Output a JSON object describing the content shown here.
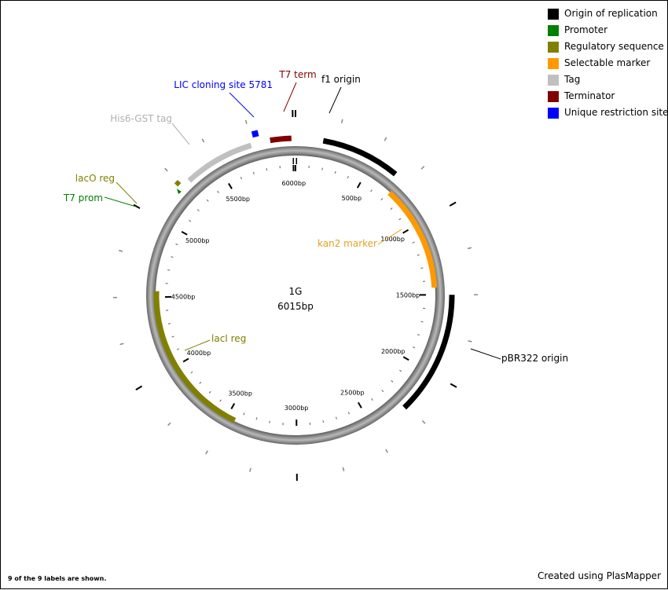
{
  "plasmid": {
    "name": "1G",
    "length_label": "6015bp",
    "length": 6015
  },
  "legend": [
    {
      "label": "Origin of replication",
      "color": "#000000"
    },
    {
      "label": "Promoter",
      "color": "#008000"
    },
    {
      "label": "Regulatory sequence",
      "color": "#808000"
    },
    {
      "label": "Selectable marker",
      "color": "#FF9900"
    },
    {
      "label": "Tag",
      "color": "#C0C0C0"
    },
    {
      "label": "Terminator",
      "color": "#800000"
    },
    {
      "label": "Unique restriction site",
      "color": "#0000FF"
    }
  ],
  "features": [
    {
      "label": "f1 origin",
      "type": "Origin of replication",
      "color": "#000000",
      "start": 170,
      "end": 660
    },
    {
      "label": "kan2 marker",
      "type": "Selectable marker",
      "color": "#FF9900",
      "start": 710,
      "end": 1450
    },
    {
      "label": "pBR322 origin",
      "type": "Origin of replication",
      "color": "#000000",
      "start": 1500,
      "end": 2270
    },
    {
      "label": "lacI reg",
      "type": "Regulatory sequence",
      "color": "#808000",
      "start": 3440,
      "end": 4540
    },
    {
      "label": "lacO reg",
      "type": "Regulatory sequence",
      "color": "#808000",
      "start": 5225,
      "end": 5260
    },
    {
      "label": "T7 prom",
      "type": "Promoter",
      "color": "#008000",
      "start": 5200,
      "end": 5225
    },
    {
      "label": "His6-GST tag",
      "type": "Tag",
      "color": "#C0C0C0",
      "start": 5300,
      "end": 5740
    },
    {
      "label": "T7 term",
      "type": "Terminator",
      "color": "#800000",
      "start": 5860,
      "end": 5990
    },
    {
      "label": "LIC cloning site 5781",
      "type": "Unique restriction site",
      "color": "#0000FF",
      "start": 5781,
      "end": 5781
    }
  ],
  "ruler": {
    "labels": [
      "500bp",
      "1000bp",
      "1500bp",
      "2000bp",
      "2500bp",
      "3000bp",
      "3500bp",
      "4000bp",
      "4500bp",
      "5000bp",
      "5500bp",
      "6000bp"
    ],
    "positions": [
      500,
      1000,
      1500,
      2000,
      2500,
      3000,
      3500,
      4000,
      4500,
      5000,
      5500,
      6000
    ]
  },
  "footnote": "9 of the 9 labels are shown.",
  "credit": "Created using PlasMapper"
}
